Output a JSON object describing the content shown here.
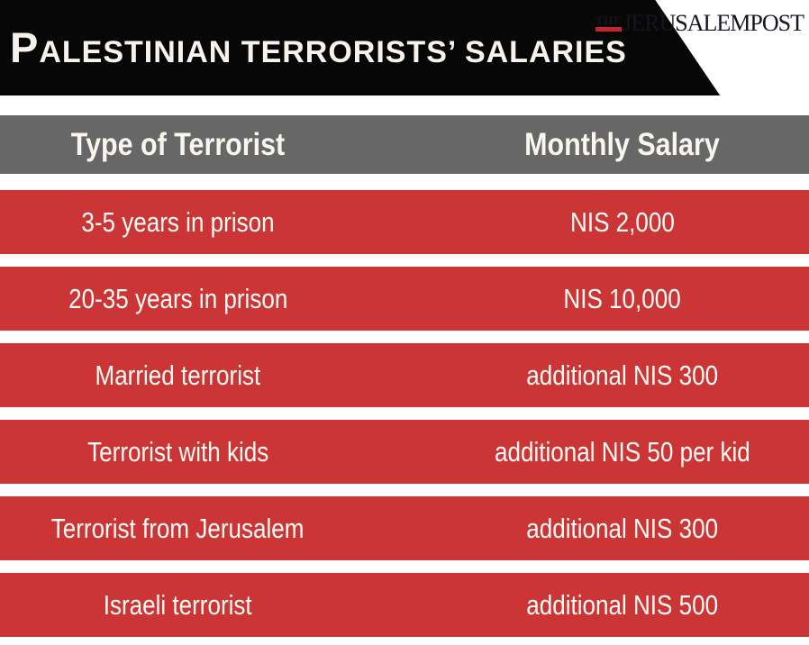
{
  "banner": {
    "title": "PALESTINIAN TERRORISTS’ SALARIES"
  },
  "logo": {
    "the": "THE",
    "name": "JERUSALEMPOST"
  },
  "table": {
    "header": {
      "type_col": "Type of Terrorist",
      "salary_col": "Monthly Salary"
    },
    "rows": [
      {
        "type": "3-5 years in prison",
        "salary": "NIS 2,000"
      },
      {
        "type": "20-35 years in prison",
        "salary": "NIS 10,000"
      },
      {
        "type": "Married terrorist",
        "salary": "additional NIS 300"
      },
      {
        "type": "Terrorist with kids",
        "salary": "additional NIS 50 per kid"
      },
      {
        "type": "Terrorist from Jerusalem",
        "salary": "additional NIS 300"
      },
      {
        "type": "Israeli terrorist",
        "salary": "additional NIS 500"
      }
    ]
  },
  "colors": {
    "row_red": "#cc3535",
    "header_gray": "#686768",
    "banner_black": "#070707",
    "logo_red": "#c3262c",
    "text_light": "#fdfbf6"
  },
  "chart_data": {
    "type": "table",
    "title": "PALESTINIAN TERRORISTS’ SALARIES",
    "columns": [
      "Type of Terrorist",
      "Monthly Salary"
    ],
    "rows": [
      [
        "3-5 years in prison",
        "NIS 2,000"
      ],
      [
        "20-35 years in prison",
        "NIS 10,000"
      ],
      [
        "Married terrorist",
        "additional NIS 300"
      ],
      [
        "Terrorist with kids",
        "additional NIS 50 per kid"
      ],
      [
        "Terrorist from Jerusalem",
        "additional NIS 300"
      ],
      [
        "Israeli terrorist",
        "additional NIS 500"
      ]
    ],
    "source": "The Jerusalem Post"
  }
}
